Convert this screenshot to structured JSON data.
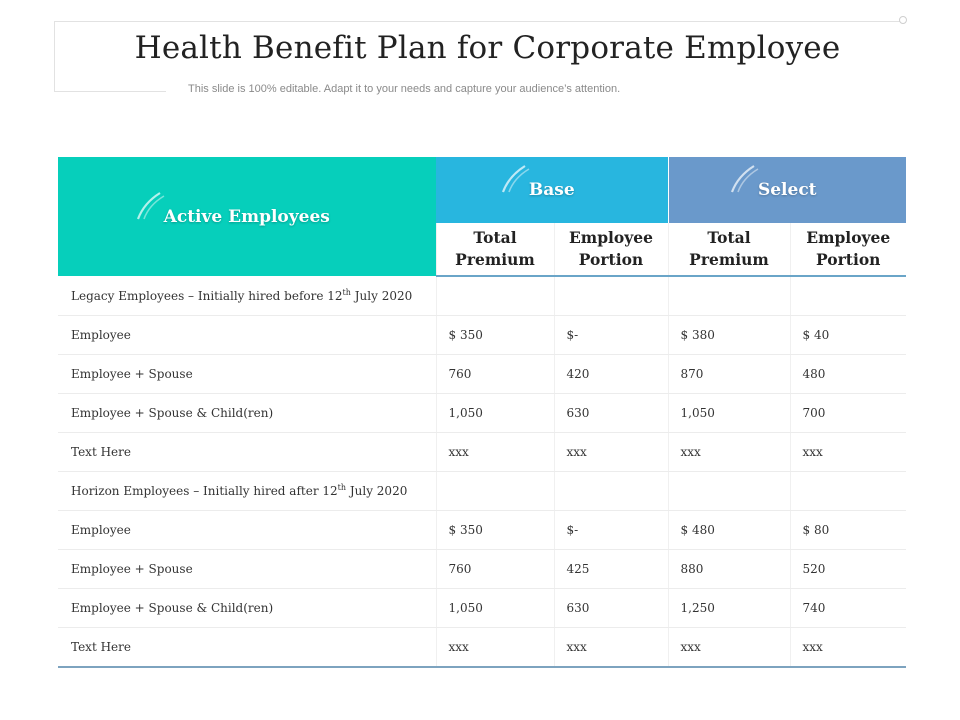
{
  "slide": {
    "title": "Health Benefit Plan for Corporate Employee",
    "subtitle": "This slide is 100% editable. Adapt it to your needs and capture your audience’s attention."
  },
  "table": {
    "header": {
      "active": "Active Employees",
      "base": "Base",
      "select": "Select",
      "sub": [
        {
          "line1": "Total",
          "line2": "Premium"
        },
        {
          "line1": "Employee",
          "line2": "Portion"
        },
        {
          "line1": "Total",
          "line2": "Premium"
        },
        {
          "line1": "Employee",
          "line2": "Portion"
        }
      ]
    },
    "sections": [
      {
        "title_pre": "Legacy Employees – Initially  hired before 12",
        "title_sup": "th",
        "title_post": " July 2020",
        "rows": [
          {
            "label": "Employee",
            "values": [
              "$ 350",
              "$-",
              "$ 380",
              "$ 40"
            ]
          },
          {
            "label": "Employee + Spouse",
            "values": [
              "760",
              "420",
              "870",
              "480"
            ]
          },
          {
            "label": "Employee + Spouse & Child(ren)",
            "values": [
              "1,050",
              "630",
              "1,050",
              "700"
            ]
          },
          {
            "label": "Text Here",
            "values": [
              "xxx",
              "xxx",
              "xxx",
              "xxx"
            ]
          }
        ]
      },
      {
        "title_pre": "Horizon Employees – Initially hired after 12",
        "title_sup": "th",
        "title_post": " July 2020",
        "rows": [
          {
            "label": "Employee",
            "values": [
              "$ 350",
              "$-",
              "$ 480",
              "$ 80"
            ]
          },
          {
            "label": "Employee + Spouse",
            "values": [
              "760",
              "425",
              "880",
              "520"
            ]
          },
          {
            "label": "Employee + Spouse & Child(ren)",
            "values": [
              "1,050",
              "630",
              "1,250",
              "740"
            ]
          },
          {
            "label": "Text Here",
            "values": [
              "xxx",
              "xxx",
              "xxx",
              "xxx"
            ]
          }
        ]
      }
    ]
  },
  "colors": {
    "active_header": "#06cfbb",
    "base_header": "#28b6df",
    "select_header": "#6a99cb"
  }
}
